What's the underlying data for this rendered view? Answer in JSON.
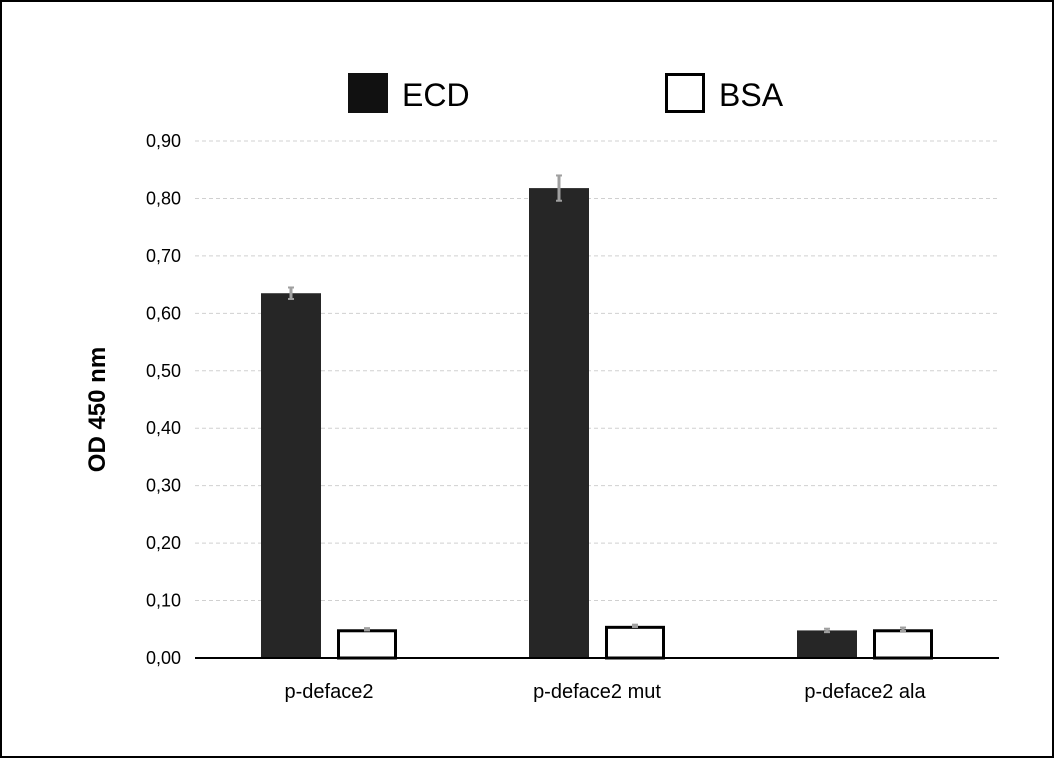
{
  "chart_data": {
    "type": "bar",
    "categories": [
      "p-deface2",
      "p-deface2 mut",
      "p-deface2 ala"
    ],
    "series": [
      {
        "name": "ECD",
        "values": [
          0.635,
          0.818,
          0.048
        ],
        "errors": [
          0.01,
          0.022,
          0.003
        ],
        "fill": "#262626",
        "stroke": "#262626"
      },
      {
        "name": "BSA",
        "values": [
          0.05,
          0.056,
          0.05
        ],
        "errors": [
          0.002,
          0.002,
          0.003
        ],
        "fill": "#ffffff",
        "stroke": "#000000"
      }
    ],
    "ylabel": "OD 450 nm",
    "xlabel": "",
    "title": "",
    "ylim": [
      0,
      0.9
    ],
    "yticks": [
      "0,00",
      "0,10",
      "0,20",
      "0,30",
      "0,40",
      "0,50",
      "0,60",
      "0,70",
      "0,80",
      "0,90"
    ],
    "grid": true,
    "legend_position": "top",
    "colors": {
      "grid": "#d0d0d0",
      "error_bar": "#a0a0a0",
      "axis": "#000000"
    }
  }
}
